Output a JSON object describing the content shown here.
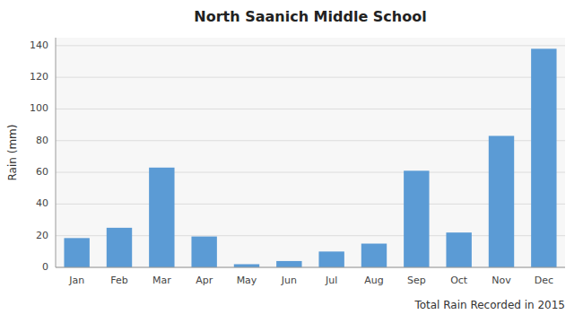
{
  "chart_data": {
    "type": "bar",
    "title": "North Saanich Middle School",
    "xlabel": "Total Rain Recorded in 2015",
    "ylabel": "Rain (mm)",
    "categories": [
      "Jan",
      "Feb",
      "Mar",
      "Apr",
      "May",
      "Jun",
      "Jul",
      "Aug",
      "Sep",
      "Oct",
      "Nov",
      "Dec"
    ],
    "values": [
      18.5,
      25,
      63,
      19.5,
      2,
      4,
      10,
      15,
      61,
      22,
      83,
      138
    ],
    "color": "#5B9BD5",
    "ylim": [
      0,
      145
    ],
    "yticks": [
      0,
      20,
      40,
      60,
      80,
      100,
      120,
      140
    ],
    "grid": true
  }
}
